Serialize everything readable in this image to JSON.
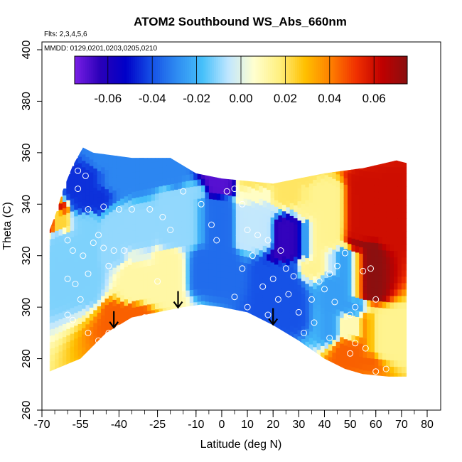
{
  "chart_data": {
    "type": "heatmap",
    "title": "ATOM2 Southbound WS_Abs_660nm",
    "annotations": {
      "flights": "Flts: 2,3,4,5,6",
      "dates": "MMDD: 0129,0201,0203,0205,0210"
    },
    "xlabel": "Latitude (deg N)",
    "ylabel": "Theta (C)",
    "xlim": [
      -70,
      80
    ],
    "ylim": [
      260,
      400
    ],
    "x_ticks": [
      -70,
      -55,
      -40,
      -25,
      -10,
      0,
      10,
      20,
      30,
      40,
      50,
      60,
      70,
      80
    ],
    "y_ticks": [
      260,
      280,
      300,
      320,
      340,
      360,
      380,
      400
    ],
    "colorbar": {
      "range": [
        -0.075,
        0.075
      ],
      "ticks": [
        -0.06,
        -0.04,
        -0.02,
        0.0,
        0.02,
        0.04,
        0.06
      ],
      "tick_labels": [
        "-0.06",
        "-0.04",
        "-0.02",
        "0.00",
        "0.02",
        "0.04",
        "0.06"
      ],
      "placement": "top"
    },
    "colors": [
      "#7a1fe6",
      "#2a00b8",
      "#0000c8",
      "#1550e6",
      "#2f8cf2",
      "#46c0fa",
      "#bfe6ff",
      "#ffffd0",
      "#fff080",
      "#ffc000",
      "#ff8000",
      "#f03000",
      "#c00000",
      "#8a1010"
    ],
    "arrows_x": [
      -42,
      -17,
      20
    ],
    "grid": false,
    "regions": [
      {
        "x": [
          -67,
          -48
        ],
        "y": [
          295,
          345
        ],
        "v": -0.012
      },
      {
        "x": [
          -60,
          -45
        ],
        "y": [
          335,
          355
        ],
        "v": -0.045
      },
      {
        "x": [
          -48,
          -25
        ],
        "y": [
          315,
          340
        ],
        "v": -0.01
      },
      {
        "x": [
          -40,
          -15
        ],
        "y": [
          300,
          325
        ],
        "v": 0.012
      },
      {
        "x": [
          -45,
          -30
        ],
        "y": [
          292,
          300
        ],
        "v": 0.045
      },
      {
        "x": [
          -25,
          -5
        ],
        "y": [
          320,
          350
        ],
        "v": -0.01
      },
      {
        "x": [
          -10,
          5
        ],
        "y": [
          300,
          350
        ],
        "v": -0.035
      },
      {
        "x": [
          -5,
          5
        ],
        "y": [
          345,
          350
        ],
        "v": -0.07
      },
      {
        "x": [
          5,
          20
        ],
        "y": [
          320,
          350
        ],
        "v": -0.005
      },
      {
        "x": [
          20,
          35
        ],
        "y": [
          318,
          335
        ],
        "v": -0.065
      },
      {
        "x": [
          15,
          30
        ],
        "y": [
          290,
          320
        ],
        "v": -0.04
      },
      {
        "x": [
          30,
          45
        ],
        "y": [
          305,
          355
        ],
        "v": 0.015
      },
      {
        "x": [
          40,
          55
        ],
        "y": [
          280,
          330
        ],
        "v": -0.025
      },
      {
        "x": [
          50,
          70
        ],
        "y": [
          320,
          355
        ],
        "v": 0.06
      },
      {
        "x": [
          52,
          60
        ],
        "y": [
          300,
          330
        ],
        "v": 0.075
      },
      {
        "x": [
          45,
          60
        ],
        "y": [
          275,
          300
        ],
        "v": 0.045
      },
      {
        "x": [
          55,
          72
        ],
        "y": [
          280,
          300
        ],
        "v": 0.015
      },
      {
        "x": [
          -67,
          -60
        ],
        "y": [
          330,
          340
        ],
        "v": 0.06
      },
      {
        "x": [
          -55,
          -10
        ],
        "y": [
          345,
          365
        ],
        "v": -0.03
      },
      {
        "x": [
          0,
          40
        ],
        "y": [
          340,
          355
        ],
        "v": 0.02
      }
    ],
    "bottom_boundary": [
      [
        -67,
        275
      ],
      [
        -55,
        280
      ],
      [
        -45,
        290
      ],
      [
        -35,
        296
      ],
      [
        -25,
        298
      ],
      [
        -15,
        300
      ],
      [
        -8,
        301
      ],
      [
        0,
        300
      ],
      [
        10,
        298
      ],
      [
        20,
        293
      ],
      [
        30,
        287
      ],
      [
        40,
        280
      ],
      [
        48,
        276
      ],
      [
        55,
        274
      ],
      [
        65,
        273
      ],
      [
        72,
        273
      ]
    ],
    "top_boundary": [
      [
        -67,
        330
      ],
      [
        -64,
        338
      ],
      [
        -62,
        345
      ],
      [
        -58,
        355
      ],
      [
        -54,
        362
      ],
      [
        -50,
        360
      ],
      [
        -35,
        358
      ],
      [
        -20,
        358
      ],
      [
        -10,
        352
      ],
      [
        0,
        350
      ],
      [
        20,
        348
      ],
      [
        40,
        352
      ],
      [
        55,
        354
      ],
      [
        68,
        357
      ],
      [
        72,
        356
      ]
    ],
    "points": [
      [
        -56,
        353
      ],
      [
        -53,
        351
      ],
      [
        -56,
        346
      ],
      [
        -52,
        338
      ],
      [
        -46,
        339
      ],
      [
        -40,
        338
      ],
      [
        -35,
        338
      ],
      [
        -28,
        338
      ],
      [
        -23,
        335
      ],
      [
        -60,
        326
      ],
      [
        -58,
        322
      ],
      [
        -54,
        320
      ],
      [
        -50,
        325
      ],
      [
        -48,
        328
      ],
      [
        -46,
        323
      ],
      [
        -44,
        316
      ],
      [
        -42,
        322
      ],
      [
        -38,
        322
      ],
      [
        -60,
        311
      ],
      [
        -57,
        309
      ],
      [
        -52,
        313
      ],
      [
        -55,
        303
      ],
      [
        -60,
        297
      ],
      [
        -58,
        295
      ],
      [
        -52,
        290
      ],
      [
        -48,
        287
      ],
      [
        -44,
        290
      ],
      [
        -40,
        292
      ],
      [
        -36,
        294
      ],
      [
        -30,
        296
      ],
      [
        -25,
        310
      ],
      [
        -20,
        330
      ],
      [
        -15,
        345
      ],
      [
        -8,
        340
      ],
      [
        -4,
        332
      ],
      [
        -2,
        326
      ],
      [
        2,
        345
      ],
      [
        5,
        346
      ],
      [
        8,
        340
      ],
      [
        10,
        330
      ],
      [
        14,
        328
      ],
      [
        18,
        326
      ],
      [
        12,
        320
      ],
      [
        8,
        315
      ],
      [
        5,
        304
      ],
      [
        10,
        300
      ],
      [
        16,
        308
      ],
      [
        20,
        311
      ],
      [
        23,
        322
      ],
      [
        25,
        315
      ],
      [
        28,
        312
      ],
      [
        26,
        305
      ],
      [
        22,
        303
      ],
      [
        18,
        297
      ],
      [
        30,
        298
      ],
      [
        32,
        290
      ],
      [
        35,
        303
      ],
      [
        38,
        310
      ],
      [
        40,
        307
      ],
      [
        42,
        313
      ],
      [
        45,
        316
      ],
      [
        48,
        321
      ],
      [
        44,
        302
      ],
      [
        50,
        297
      ],
      [
        52,
        300
      ],
      [
        55,
        314
      ],
      [
        58,
        315
      ],
      [
        60,
        303
      ],
      [
        56,
        284
      ],
      [
        52,
        286
      ],
      [
        60,
        275
      ],
      [
        64,
        276
      ],
      [
        50,
        282
      ],
      [
        42,
        288
      ],
      [
        36,
        294
      ]
    ]
  }
}
